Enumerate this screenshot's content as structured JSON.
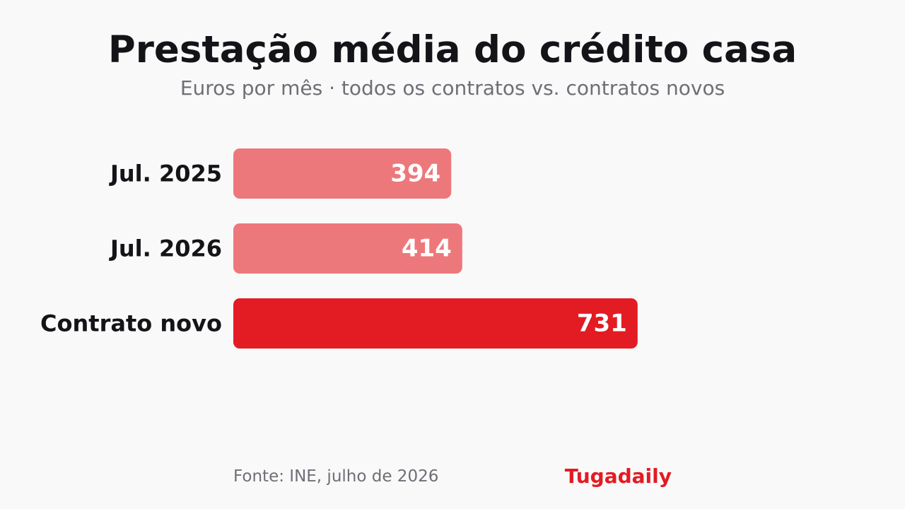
{
  "header": {
    "title": "Prestação média do crédito casa",
    "subtitle": "Euros por mês · todos os contratos vs. contratos novos"
  },
  "footer": {
    "source": "Fonte: INE, julho de 2026",
    "brand": "Tugadaily"
  },
  "colors": {
    "brand": "#e31b23",
    "bar_highlight": "#e31b23",
    "bar_muted": "#ed787b",
    "label_text": "#141418",
    "value_text": "#ffffff",
    "muted_text": "#6e6e76",
    "background": "#f9f9f9"
  },
  "chart_data": {
    "type": "bar",
    "orientation": "horizontal",
    "title": "Prestação média do crédito casa",
    "subtitle": "Euros por mês · todos os contratos vs. contratos novos",
    "categories": [
      "Jul. 2025",
      "Jul. 2026",
      "Contrato novo"
    ],
    "values": [
      394,
      414,
      731
    ],
    "highlight": [
      false,
      false,
      true
    ],
    "unit": "€ / mês",
    "xlim": [
      0,
      900
    ],
    "grid": false,
    "legend": "none",
    "data_labels": "inside-end"
  }
}
